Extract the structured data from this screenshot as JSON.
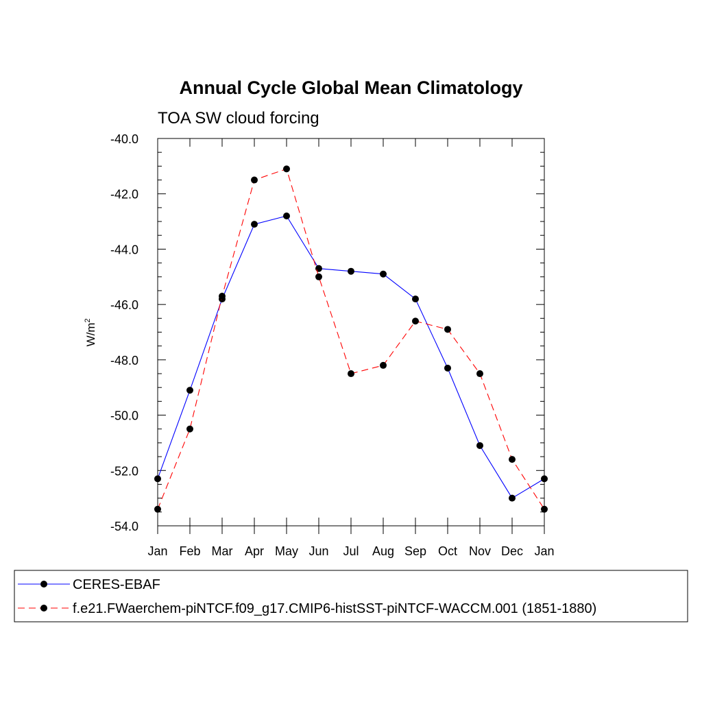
{
  "chart_data": {
    "type": "line",
    "title": "Annual Cycle Global Mean Climatology",
    "subtitle": "TOA SW cloud forcing",
    "ylabel": "W/m",
    "ylabel_sup": "2",
    "xlabel": "",
    "categories": [
      "Jan",
      "Feb",
      "Mar",
      "Apr",
      "May",
      "Jun",
      "Jul",
      "Aug",
      "Sep",
      "Oct",
      "Nov",
      "Dec",
      "Jan"
    ],
    "ylim": [
      -54.0,
      -40.0
    ],
    "yticks": [
      "-40.0",
      "-42.0",
      "-44.0",
      "-46.0",
      "-48.0",
      "-50.0",
      "-52.0",
      "-54.0"
    ],
    "yticks_values": [
      -40,
      -42,
      -44,
      -46,
      -48,
      -50,
      -52,
      -54
    ],
    "grid": false,
    "legend_position": "bottom",
    "series": [
      {
        "name": "CERES-EBAF",
        "color": "#0000ff",
        "dash": "solid",
        "marker": "filled-circle",
        "values": [
          -52.3,
          -49.1,
          -45.8,
          -43.1,
          -42.8,
          -44.7,
          -44.8,
          -44.9,
          -45.8,
          -48.3,
          -51.1,
          -53.0,
          -52.3
        ]
      },
      {
        "name": "f.e21.FWaerchem-piNTCF.f09_g17.CMIP6-histSST-piNTCF-WACCM.001 (1851-1880)",
        "color": "#ff0000",
        "dash": "dashed",
        "marker": "filled-circle",
        "values": [
          -53.4,
          -50.5,
          -45.7,
          -41.5,
          -41.1,
          -45.0,
          -48.5,
          -48.2,
          -46.6,
          -46.9,
          -48.5,
          -51.6,
          -53.4
        ]
      }
    ]
  }
}
